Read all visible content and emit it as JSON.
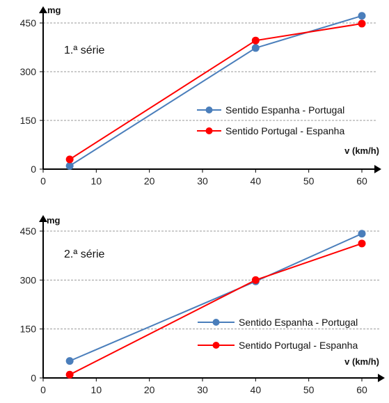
{
  "chart_data": [
    {
      "type": "line",
      "annotation": "1.ª série",
      "xlabel": "v (km/h)",
      "ylabel": "mg",
      "xlim": [
        0,
        60
      ],
      "ylim": [
        0,
        450
      ],
      "xticks": [
        "0",
        "10",
        "20",
        "30",
        "40",
        "50",
        "60"
      ],
      "yticks": [
        "0",
        "150",
        "300",
        "450"
      ],
      "grid": "horizontal dashed",
      "legend": "right",
      "series": [
        {
          "name": "Sentido Espanha - Portugal",
          "color": "#4a7ebb",
          "x": [
            5,
            40,
            60
          ],
          "y": [
            10,
            373,
            472
          ]
        },
        {
          "name": "Sentido Portugal - Espanha",
          "color": "#ff0000",
          "x": [
            5,
            40,
            60
          ],
          "y": [
            30,
            396,
            448
          ]
        }
      ]
    },
    {
      "type": "line",
      "annotation": "2.ª série",
      "xlabel": "v (km/h)",
      "ylabel": "mg",
      "xlim": [
        0,
        60
      ],
      "ylim": [
        0,
        450
      ],
      "xticks": [
        "0",
        "10",
        "20",
        "30",
        "40",
        "50",
        "60"
      ],
      "yticks": [
        "0",
        "150",
        "300",
        "450"
      ],
      "grid": "horizontal dashed",
      "legend": "right",
      "series": [
        {
          "name": "Sentido Espanha - Portugal",
          "color": "#4a7ebb",
          "x": [
            5,
            40,
            60
          ],
          "y": [
            52,
            296,
            442
          ]
        },
        {
          "name": "Sentido Portugal - Espanha",
          "color": "#ff0000",
          "x": [
            5,
            40,
            60
          ],
          "y": [
            10,
            300,
            412
          ]
        }
      ]
    }
  ]
}
